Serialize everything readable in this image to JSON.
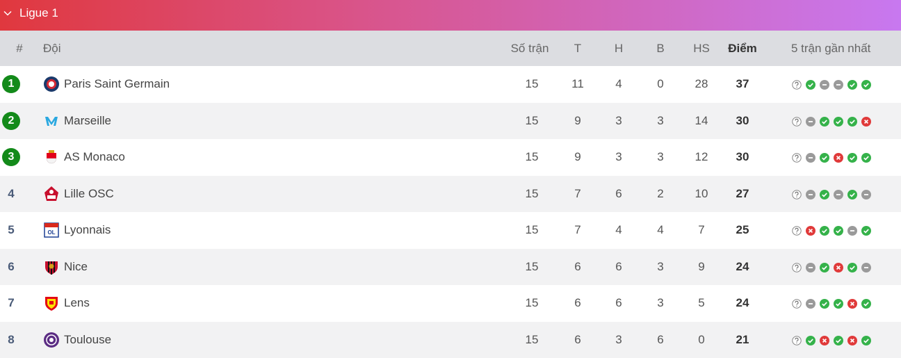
{
  "header": {
    "title": "Ligue 1"
  },
  "table": {
    "columns": [
      "#",
      "Đội",
      "Số trận",
      "T",
      "H",
      "B",
      "HS",
      "Điểm",
      "5 trận gần nhất"
    ],
    "rows": [
      [
        1,
        "Paris Saint Germain",
        15,
        11,
        4,
        0,
        28,
        37
      ],
      [
        2,
        "Marseille",
        15,
        9,
        3,
        3,
        14,
        30
      ],
      [
        3,
        "AS Monaco",
        15,
        9,
        3,
        3,
        12,
        30
      ],
      [
        4,
        "Lille OSC",
        15,
        7,
        6,
        2,
        10,
        27
      ],
      [
        5,
        "Lyonnais",
        15,
        7,
        4,
        4,
        7,
        25
      ],
      [
        6,
        "Nice",
        15,
        6,
        6,
        3,
        9,
        24
      ],
      [
        7,
        "Lens",
        15,
        6,
        6,
        3,
        5,
        24
      ],
      [
        8,
        "Toulouse",
        15,
        6,
        3,
        6,
        0,
        21
      ]
    ]
  }
}
